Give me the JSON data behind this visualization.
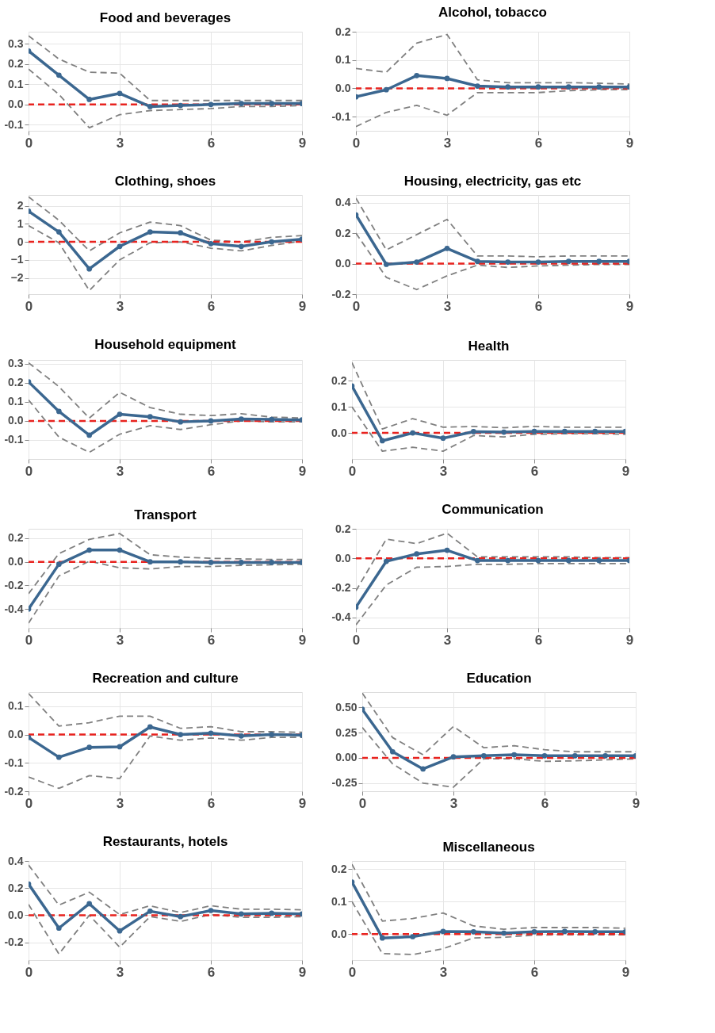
{
  "chart_data": [
    {
      "type": "line",
      "title": "Food and beverages",
      "x": [
        0,
        1,
        2,
        3,
        4,
        5,
        6,
        7,
        8,
        9
      ],
      "xlim": [
        0,
        9
      ],
      "xticks": [
        0,
        3,
        6,
        9
      ],
      "ylim": [
        -0.13,
        0.36
      ],
      "yticks": [
        {
          "value": -0.1,
          "label": "-0.1"
        },
        {
          "value": 0,
          "label": "0.0"
        },
        {
          "value": 0.1,
          "label": "0.1"
        },
        {
          "value": 0.2,
          "label": "0.2"
        },
        {
          "value": 0.3,
          "label": "0.3"
        }
      ],
      "grid": true,
      "series": [
        {
          "color": "#808080",
          "line_style": "dashed",
          "marker": "none",
          "values": [
            0.34,
            0.225,
            0.16,
            0.155,
            0.02,
            0.02,
            0.02,
            0.02,
            0.02,
            0.02
          ]
        },
        {
          "color": "#808080",
          "line_style": "dashed",
          "marker": "none",
          "values": [
            0.175,
            0.05,
            -0.115,
            -0.05,
            -0.03,
            -0.025,
            -0.02,
            -0.01,
            -0.01,
            -0.005
          ]
        },
        {
          "color": "#3b6790",
          "line_style": "solid",
          "marker": "circle",
          "values": [
            0.265,
            0.145,
            0.025,
            0.055,
            -0.01,
            -0.005,
            0,
            0.005,
            0.005,
            0.005
          ]
        }
      ],
      "ref_lines": [
        {
          "axis": "y",
          "value": 0,
          "color": "#e8231f",
          "line_style": "dashed"
        }
      ]
    },
    {
      "type": "line",
      "title": "Alcohol, tobacco",
      "x": [
        0,
        1,
        2,
        3,
        4,
        5,
        6,
        7,
        8,
        9
      ],
      "xlim": [
        0,
        9
      ],
      "xticks": [
        0,
        3,
        6,
        9
      ],
      "ylim": [
        -0.15,
        0.2
      ],
      "yticks": [
        {
          "value": -0.1,
          "label": "-0.1"
        },
        {
          "value": 0,
          "label": "0.0"
        },
        {
          "value": 0.1,
          "label": "0.1"
        },
        {
          "value": 0.2,
          "label": "0.2"
        }
      ],
      "grid": true,
      "series": [
        {
          "color": "#808080",
          "line_style": "dashed",
          "marker": "none",
          "values": [
            0.07,
            0.057,
            0.16,
            0.19,
            0.03,
            0.02,
            0.02,
            0.02,
            0.018,
            0.015
          ]
        },
        {
          "color": "#808080",
          "line_style": "dashed",
          "marker": "none",
          "values": [
            -0.135,
            -0.085,
            -0.06,
            -0.095,
            -0.015,
            -0.015,
            -0.015,
            -0.008,
            -0.005,
            -0.005
          ]
        },
        {
          "color": "#3b6790",
          "line_style": "solid",
          "marker": "circle",
          "values": [
            -0.03,
            -0.005,
            0.045,
            0.035,
            0.008,
            0.005,
            0.005,
            0.005,
            0.005,
            0.005
          ]
        }
      ],
      "ref_lines": [
        {
          "axis": "y",
          "value": 0,
          "color": "#e8231f",
          "line_style": "dashed"
        }
      ]
    },
    {
      "type": "line",
      "title": "Clothing, shoes",
      "x": [
        0,
        1,
        2,
        3,
        4,
        5,
        6,
        7,
        8,
        9
      ],
      "xlim": [
        0,
        9
      ],
      "xticks": [
        0,
        3,
        6,
        9
      ],
      "ylim": [
        -2.9,
        2.6
      ],
      "yticks": [
        -2,
        -1,
        0,
        1,
        2
      ],
      "grid": true,
      "series": [
        {
          "color": "#808080",
          "line_style": "dashed",
          "marker": "none",
          "values": [
            2.5,
            1.2,
            -0.5,
            0.5,
            1.1,
            0.9,
            0.1,
            0,
            0.25,
            0.35
          ]
        },
        {
          "color": "#808080",
          "line_style": "dashed",
          "marker": "none",
          "values": [
            0.9,
            -0.05,
            -2.7,
            -1.0,
            -0.05,
            0,
            -0.35,
            -0.5,
            -0.2,
            0.05
          ]
        },
        {
          "color": "#3b6790",
          "line_style": "solid",
          "marker": "circle",
          "values": [
            1.7,
            0.55,
            -1.5,
            -0.25,
            0.55,
            0.5,
            -0.1,
            -0.25,
            0,
            0.15
          ]
        }
      ],
      "ref_lines": [
        {
          "axis": "y",
          "value": 0,
          "color": "#e8231f",
          "line_style": "dashed"
        }
      ]
    },
    {
      "type": "line",
      "title": "Housing, electricity, gas etc",
      "x": [
        0,
        1,
        2,
        3,
        4,
        5,
        6,
        7,
        8,
        9
      ],
      "xlim": [
        0,
        9
      ],
      "xticks": [
        0,
        3,
        6,
        9
      ],
      "ylim": [
        -0.2,
        0.45
      ],
      "yticks": [
        {
          "value": -0.2,
          "label": "-0.2"
        },
        {
          "value": 0,
          "label": "0.0"
        },
        {
          "value": 0.2,
          "label": "0.2"
        },
        {
          "value": 0.4,
          "label": "0.4"
        }
      ],
      "grid": true,
      "series": [
        {
          "color": "#808080",
          "line_style": "dashed",
          "marker": "none",
          "values": [
            0.43,
            0.09,
            0.19,
            0.29,
            0.05,
            0.05,
            0.045,
            0.05,
            0.05,
            0.05
          ]
        },
        {
          "color": "#808080",
          "line_style": "dashed",
          "marker": "none",
          "values": [
            0.2,
            -0.09,
            -0.17,
            -0.08,
            -0.01,
            -0.025,
            -0.015,
            -0.01,
            -0.005,
            -0.005
          ]
        },
        {
          "color": "#3b6790",
          "line_style": "solid",
          "marker": "circle",
          "values": [
            0.32,
            -0.005,
            0.01,
            0.1,
            0.015,
            0.01,
            0.01,
            0.015,
            0.015,
            0.015
          ]
        }
      ],
      "ref_lines": [
        {
          "axis": "y",
          "value": 0,
          "color": "#e8231f",
          "line_style": "dashed"
        }
      ]
    },
    {
      "type": "line",
      "title": "Household equipment",
      "x": [
        0,
        1,
        2,
        3,
        4,
        5,
        6,
        7,
        8,
        9
      ],
      "xlim": [
        0,
        9
      ],
      "xticks": [
        0,
        3,
        6,
        9
      ],
      "ylim": [
        -0.2,
        0.32
      ],
      "yticks": [
        {
          "value": -0.1,
          "label": "-0.1"
        },
        {
          "value": 0,
          "label": "0.0"
        },
        {
          "value": 0.1,
          "label": "0.1"
        },
        {
          "value": 0.2,
          "label": "0.2"
        },
        {
          "value": 0.3,
          "label": "0.3"
        }
      ],
      "grid": true,
      "series": [
        {
          "color": "#808080",
          "line_style": "dashed",
          "marker": "none",
          "values": [
            0.305,
            0.18,
            0.015,
            0.15,
            0.07,
            0.035,
            0.028,
            0.038,
            0.02,
            0.015
          ]
        },
        {
          "color": "#808080",
          "line_style": "dashed",
          "marker": "none",
          "values": [
            0.11,
            -0.085,
            -0.165,
            -0.07,
            -0.025,
            -0.045,
            -0.02,
            0,
            -0.005,
            -0.005
          ]
        },
        {
          "color": "#3b6790",
          "line_style": "solid",
          "marker": "circle",
          "values": [
            0.205,
            0.05,
            -0.075,
            0.035,
            0.022,
            -0.005,
            0,
            0.01,
            0.008,
            0.005
          ]
        }
      ],
      "ref_lines": [
        {
          "axis": "y",
          "value": 0,
          "color": "#e8231f",
          "line_style": "dashed"
        }
      ]
    },
    {
      "type": "line",
      "title": "Health",
      "x": [
        0,
        1,
        2,
        3,
        4,
        5,
        6,
        7,
        8,
        9
      ],
      "xlim": [
        0,
        9
      ],
      "xticks": [
        0,
        3,
        6,
        9
      ],
      "ylim": [
        -0.1,
        0.28
      ],
      "yticks": [
        {
          "value": 0,
          "label": "0.0"
        },
        {
          "value": 0.1,
          "label": "0.1"
        },
        {
          "value": 0.2,
          "label": "0.2"
        }
      ],
      "grid": true,
      "series": [
        {
          "color": "#808080",
          "line_style": "dashed",
          "marker": "none",
          "values": [
            0.27,
            0.015,
            0.055,
            0.022,
            0.025,
            0.02,
            0.025,
            0.022,
            0.022,
            0.022
          ]
        },
        {
          "color": "#808080",
          "line_style": "dashed",
          "marker": "none",
          "values": [
            0.1,
            -0.07,
            -0.055,
            -0.07,
            -0.01,
            -0.015,
            -0.005,
            -0.003,
            -0.003,
            -0.005
          ]
        },
        {
          "color": "#3b6790",
          "line_style": "solid",
          "marker": "circle",
          "values": [
            0.18,
            -0.03,
            0,
            -0.02,
            0.005,
            0.003,
            0.006,
            0.006,
            0.006,
            0.006
          ]
        }
      ],
      "ref_lines": [
        {
          "axis": "y",
          "value": 0,
          "color": "#e8231f",
          "line_style": "dashed"
        }
      ]
    },
    {
      "type": "line",
      "title": "Transport",
      "x": [
        0,
        1,
        2,
        3,
        4,
        5,
        6,
        7,
        8,
        9
      ],
      "xlim": [
        0,
        9
      ],
      "xticks": [
        0,
        3,
        6,
        9
      ],
      "ylim": [
        -0.56,
        0.28
      ],
      "yticks": [
        {
          "value": -0.4,
          "label": "-0.4"
        },
        {
          "value": -0.2,
          "label": "-0.2"
        },
        {
          "value": 0,
          "label": "0.0"
        },
        {
          "value": 0.2,
          "label": "0.2"
        }
      ],
      "grid": true,
      "series": [
        {
          "color": "#808080",
          "line_style": "dashed",
          "marker": "none",
          "values": [
            -0.27,
            0.07,
            0.19,
            0.24,
            0.06,
            0.04,
            0.03,
            0.025,
            0.02,
            0.02
          ]
        },
        {
          "color": "#808080",
          "line_style": "dashed",
          "marker": "none",
          "values": [
            -0.52,
            -0.12,
            0.005,
            -0.05,
            -0.06,
            -0.04,
            -0.04,
            -0.03,
            -0.025,
            -0.02
          ]
        },
        {
          "color": "#3b6790",
          "line_style": "solid",
          "marker": "circle",
          "values": [
            -0.4,
            -0.02,
            0.1,
            0.1,
            0,
            0,
            -0.005,
            -0.005,
            -0.005,
            -0.005
          ]
        }
      ],
      "ref_lines": [
        {
          "axis": "y",
          "value": 0,
          "color": "#e8231f",
          "line_style": "dashed"
        }
      ]
    },
    {
      "type": "line",
      "title": "Communication",
      "x": [
        0,
        1,
        2,
        3,
        4,
        5,
        6,
        7,
        8,
        9
      ],
      "xlim": [
        0,
        9
      ],
      "xticks": [
        0,
        3,
        6,
        9
      ],
      "ylim": [
        -0.47,
        0.2
      ],
      "yticks": [
        {
          "value": -0.4,
          "label": "-0.4"
        },
        {
          "value": -0.2,
          "label": "-0.2"
        },
        {
          "value": 0,
          "label": "0.0"
        },
        {
          "value": 0.2,
          "label": "0.2"
        }
      ],
      "grid": true,
      "series": [
        {
          "color": "#808080",
          "line_style": "dashed",
          "marker": "none",
          "values": [
            -0.22,
            0.13,
            0.1,
            0.17,
            0.01,
            0.01,
            0.01,
            0.01,
            0.005,
            0.005
          ]
        },
        {
          "color": "#808080",
          "line_style": "dashed",
          "marker": "none",
          "values": [
            -0.45,
            -0.18,
            -0.06,
            -0.055,
            -0.04,
            -0.04,
            -0.035,
            -0.035,
            -0.035,
            -0.035
          ]
        },
        {
          "color": "#3b6790",
          "line_style": "solid",
          "marker": "circle",
          "values": [
            -0.33,
            -0.02,
            0.03,
            0.055,
            -0.015,
            -0.015,
            -0.015,
            -0.015,
            -0.015,
            -0.015
          ]
        }
      ],
      "ref_lines": [
        {
          "axis": "y",
          "value": 0,
          "color": "#e8231f",
          "line_style": "dashed"
        }
      ]
    },
    {
      "type": "line",
      "title": "Recreation and culture",
      "x": [
        0,
        1,
        2,
        3,
        4,
        5,
        6,
        7,
        8,
        9
      ],
      "xlim": [
        0,
        9
      ],
      "xticks": [
        0,
        3,
        6,
        9
      ],
      "ylim": [
        -0.2,
        0.15
      ],
      "yticks": [
        {
          "value": -0.2,
          "label": "-0.2"
        },
        {
          "value": -0.1,
          "label": "-0.1"
        },
        {
          "value": 0,
          "label": "0.0"
        },
        {
          "value": 0.1,
          "label": "0.1"
        }
      ],
      "grid": true,
      "series": [
        {
          "color": "#808080",
          "line_style": "dashed",
          "marker": "none",
          "values": [
            0.145,
            0.03,
            0.042,
            0.065,
            0.065,
            0.022,
            0.028,
            0.01,
            0.01,
            0.008
          ]
        },
        {
          "color": "#808080",
          "line_style": "dashed",
          "marker": "none",
          "values": [
            -0.15,
            -0.19,
            -0.145,
            -0.155,
            -0.005,
            -0.02,
            -0.012,
            -0.02,
            -0.01,
            -0.01
          ]
        },
        {
          "color": "#3b6790",
          "line_style": "solid",
          "marker": "circle",
          "values": [
            -0.01,
            -0.08,
            -0.045,
            -0.043,
            0.027,
            0,
            0.005,
            -0.005,
            0,
            -0.002
          ]
        }
      ],
      "ref_lines": [
        {
          "axis": "y",
          "value": 0,
          "color": "#e8231f",
          "line_style": "dashed"
        }
      ]
    },
    {
      "type": "line",
      "title": "Education",
      "x": [
        0,
        1,
        2,
        3,
        4,
        5,
        6,
        7,
        8,
        9
      ],
      "xlim": [
        0,
        9
      ],
      "xticks": [
        0,
        3,
        6,
        9
      ],
      "ylim": [
        -0.33,
        0.65
      ],
      "yticks": [
        {
          "value": -0.25,
          "label": "-0.25"
        },
        {
          "value": 0,
          "label": "0.00"
        },
        {
          "value": 0.25,
          "label": "0.25"
        },
        {
          "value": 0.5,
          "label": "0.50"
        }
      ],
      "grid": true,
      "series": [
        {
          "color": "#808080",
          "line_style": "dashed",
          "marker": "none",
          "values": [
            0.64,
            0.2,
            0.03,
            0.31,
            0.1,
            0.12,
            0.08,
            0.06,
            0.06,
            0.06
          ]
        },
        {
          "color": "#808080",
          "line_style": "dashed",
          "marker": "none",
          "values": [
            0.3,
            -0.06,
            -0.25,
            -0.29,
            -0.01,
            -0.01,
            -0.035,
            -0.03,
            -0.02,
            -0.01
          ]
        },
        {
          "color": "#3b6790",
          "line_style": "solid",
          "marker": "circle",
          "values": [
            0.48,
            0.06,
            -0.11,
            0.01,
            0.02,
            0.03,
            0.02,
            0.02,
            0.02,
            0.02
          ]
        }
      ],
      "ref_lines": [
        {
          "axis": "y",
          "value": 0,
          "color": "#e8231f",
          "line_style": "dashed"
        }
      ]
    },
    {
      "type": "line",
      "title": "Restaurants, hotels",
      "x": [
        0,
        1,
        2,
        3,
        4,
        5,
        6,
        7,
        8,
        9
      ],
      "xlim": [
        0,
        9
      ],
      "xticks": [
        0,
        3,
        6,
        9
      ],
      "ylim": [
        -0.33,
        0.4
      ],
      "yticks": [
        {
          "value": -0.2,
          "label": "-0.2"
        },
        {
          "value": 0,
          "label": "0.0"
        },
        {
          "value": 0.2,
          "label": "0.2"
        },
        {
          "value": 0.4,
          "label": "0.4"
        }
      ],
      "grid": true,
      "series": [
        {
          "color": "#808080",
          "line_style": "dashed",
          "marker": "none",
          "values": [
            0.37,
            0.075,
            0.17,
            0.005,
            0.07,
            0.02,
            0.07,
            0.045,
            0.045,
            0.04
          ]
        },
        {
          "color": "#808080",
          "line_style": "dashed",
          "marker": "none",
          "values": [
            0.08,
            -0.285,
            0,
            -0.235,
            -0.01,
            -0.045,
            0.005,
            -0.015,
            -0.015,
            -0.01
          ]
        },
        {
          "color": "#3b6790",
          "line_style": "solid",
          "marker": "circle",
          "values": [
            0.23,
            -0.095,
            0.085,
            -0.115,
            0.03,
            -0.01,
            0.035,
            0.01,
            0.015,
            0.01
          ]
        }
      ],
      "ref_lines": [
        {
          "axis": "y",
          "value": 0,
          "color": "#e8231f",
          "line_style": "dashed"
        }
      ]
    },
    {
      "type": "line",
      "title": "Miscellaneous",
      "x": [
        0,
        1,
        2,
        3,
        4,
        5,
        6,
        7,
        8,
        9
      ],
      "xlim": [
        0,
        9
      ],
      "xticks": [
        0,
        3,
        6,
        9
      ],
      "ylim": [
        -0.08,
        0.225
      ],
      "yticks": [
        {
          "value": 0,
          "label": "0.0"
        },
        {
          "value": 0.1,
          "label": "0.1"
        },
        {
          "value": 0.2,
          "label": "0.2"
        }
      ],
      "grid": true,
      "series": [
        {
          "color": "#808080",
          "line_style": "dashed",
          "marker": "none",
          "values": [
            0.215,
            0.04,
            0.048,
            0.065,
            0.025,
            0.015,
            0.02,
            0.02,
            0.02,
            0.018
          ]
        },
        {
          "color": "#808080",
          "line_style": "dashed",
          "marker": "none",
          "values": [
            0.1,
            -0.06,
            -0.063,
            -0.045,
            -0.012,
            -0.01,
            -0.003,
            -0.002,
            -0.002,
            -0.002
          ]
        },
        {
          "color": "#3b6790",
          "line_style": "solid",
          "marker": "circle",
          "values": [
            0.16,
            -0.012,
            -0.008,
            0.008,
            0.007,
            0.003,
            0.007,
            0.008,
            0.007,
            0.007
          ]
        }
      ],
      "ref_lines": [
        {
          "axis": "y",
          "value": 0,
          "color": "#e8231f",
          "line_style": "dashed"
        }
      ]
    }
  ]
}
